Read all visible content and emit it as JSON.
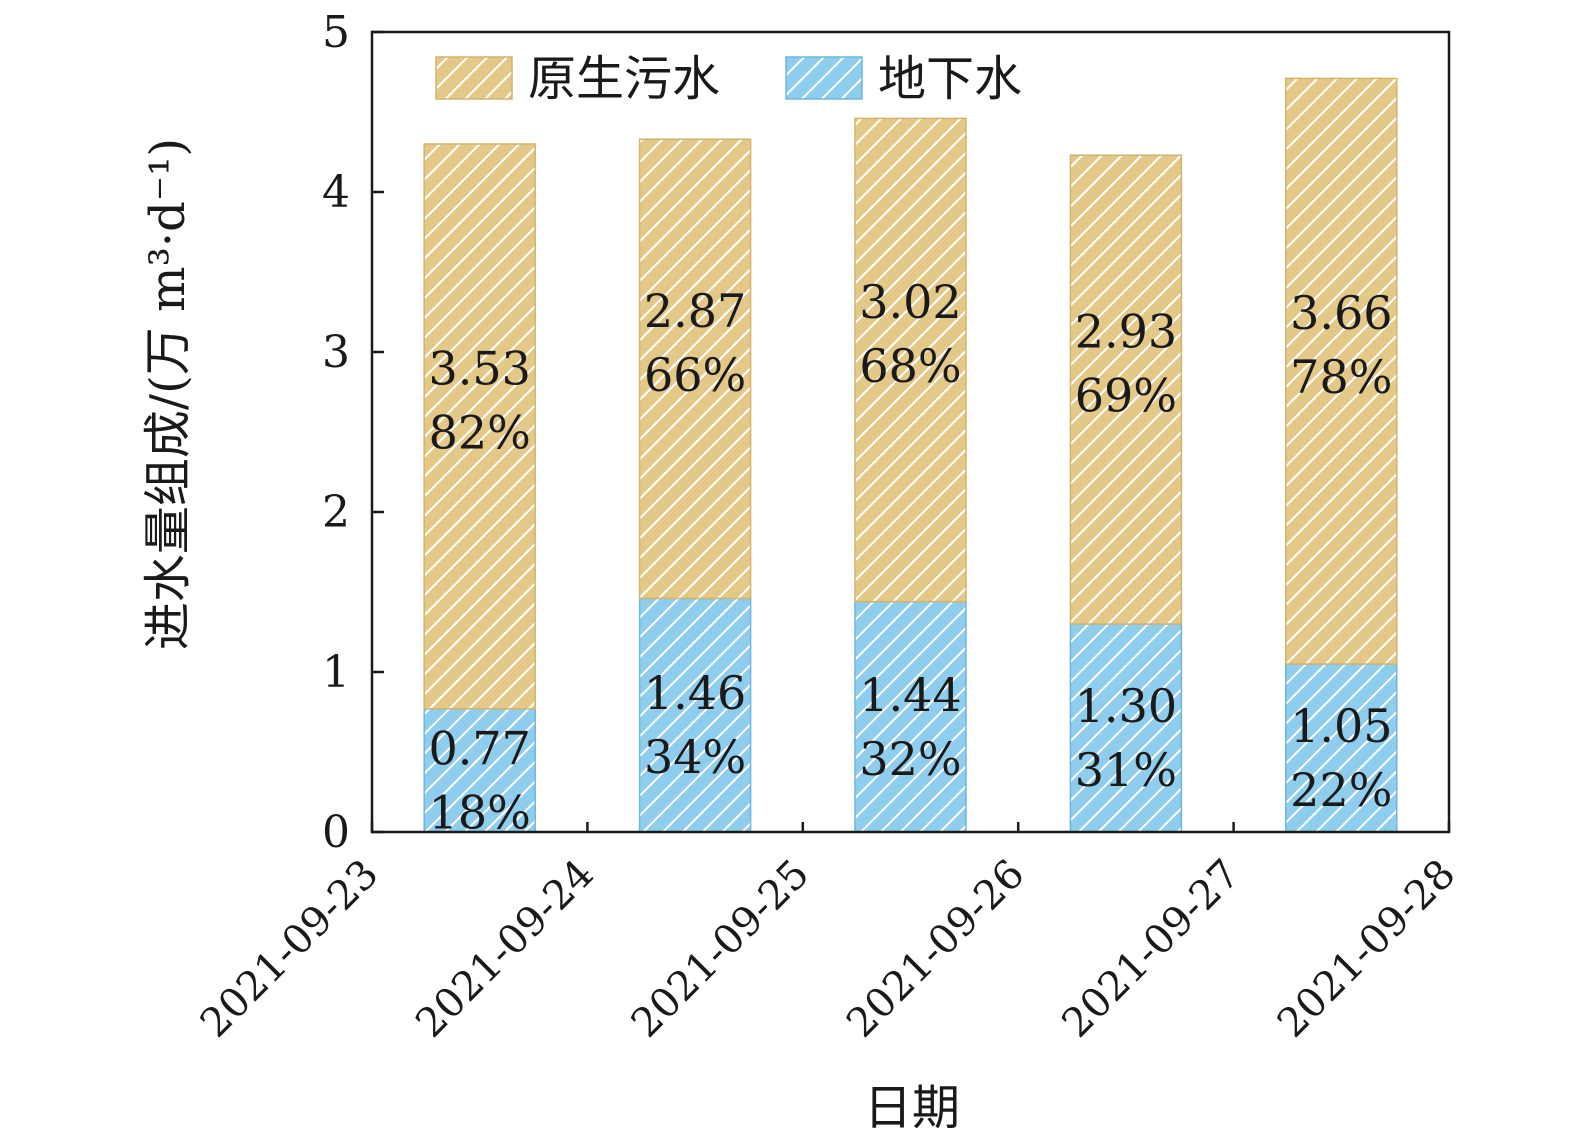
{
  "chart_data": {
    "type": "bar",
    "stacked": true,
    "title": "",
    "xlabel": "日期",
    "ylabel": "进水量组成/(万 m³·d⁻¹)",
    "ylim": [
      0,
      5
    ],
    "yticks": [
      "0",
      "1",
      "2",
      "3",
      "4",
      "5"
    ],
    "xticks": [
      "2021-09-23",
      "2021-09-24",
      "2021-09-25",
      "2021-09-26",
      "2021-09-27",
      "2021-09-28"
    ],
    "grid": false,
    "legend": {
      "position": "top",
      "orientation": "horizontal"
    },
    "series": [
      {
        "name": "地下水",
        "color": "#8ecdee",
        "pattern": "diagonal-hatch",
        "values": [
          0.77,
          1.46,
          1.44,
          1.3,
          1.05
        ],
        "value_labels": [
          "0.77",
          "1.46",
          "1.44",
          "1.30",
          "1.05"
        ],
        "percent_labels": [
          "18%",
          "34%",
          "32%",
          "31%",
          "22%"
        ]
      },
      {
        "name": "原生污水",
        "color": "#e4c887",
        "pattern": "diagonal-hatch",
        "values": [
          3.53,
          2.87,
          3.02,
          2.93,
          3.66
        ],
        "value_labels": [
          "3.53",
          "2.87",
          "3.02",
          "2.93",
          "3.66"
        ],
        "percent_labels": [
          "82%",
          "66%",
          "68%",
          "69%",
          "78%"
        ]
      }
    ]
  }
}
